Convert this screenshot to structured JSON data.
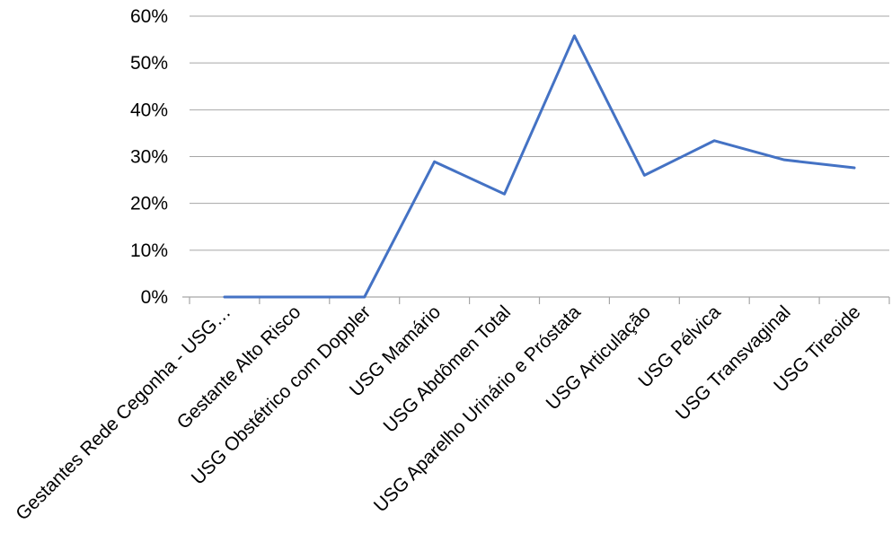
{
  "chart_data": {
    "type": "line",
    "categories": [
      "Gestantes Rede Cegonha - USG…",
      "Gestante Alto Risco",
      "USG Obstétrico com Doppler",
      "USG Mamário",
      "USG Abdômen Total",
      "USG Aparelho Urinário e Próstata",
      "USG Articulação",
      "USG Pélvica",
      "USG Transvaginal",
      "USG Tireoide"
    ],
    "series": [
      {
        "values": [
          0,
          0,
          0,
          28.9,
          22.0,
          55.8,
          26.0,
          33.4,
          29.3,
          27.6
        ],
        "color": "#4472C4"
      }
    ],
    "y_ticks": [
      "0%",
      "10%",
      "20%",
      "30%",
      "40%",
      "50%",
      "60%"
    ],
    "ylim": [
      0,
      60
    ],
    "grid": true,
    "legend": "none",
    "title": "",
    "xlabel": "",
    "ylabel": ""
  }
}
